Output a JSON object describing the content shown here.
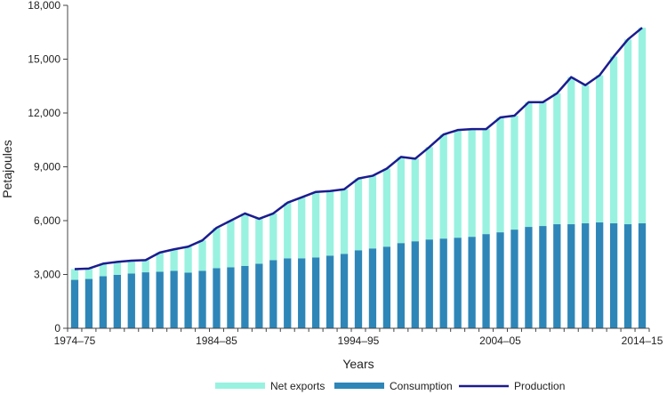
{
  "chart_data": {
    "type": "bar",
    "stacked": true,
    "xlabel": "Years",
    "ylabel": "Petajoules",
    "ylim": [
      0,
      18000
    ],
    "yticks": [
      0,
      3000,
      6000,
      9000,
      12000,
      15000,
      18000
    ],
    "ytick_labels": [
      "0",
      "3,000",
      "6,000",
      "9,000",
      "12,000",
      "15,000",
      "18,000"
    ],
    "xtick_labels": [
      "1974–75",
      "1984–85",
      "1994–95",
      "2004–05",
      "2014–15"
    ],
    "categories": [
      "1974–75",
      "1975–76",
      "1976–77",
      "1977–78",
      "1978–79",
      "1979–80",
      "1980–81",
      "1981–82",
      "1982–83",
      "1983–84",
      "1984–85",
      "1985–86",
      "1986–87",
      "1987–88",
      "1988–89",
      "1989–90",
      "1990–91",
      "1991–92",
      "1992–93",
      "1993–94",
      "1994–95",
      "1995–96",
      "1996–97",
      "1997–98",
      "1998–99",
      "1999–00",
      "2000–01",
      "2001–02",
      "2002–03",
      "2003–04",
      "2004–05",
      "2005–06",
      "2006–07",
      "2007–08",
      "2008–09",
      "2009–10",
      "2010–11",
      "2011–12",
      "2012–13",
      "2013–14",
      "2014–15"
    ],
    "series": [
      {
        "name": "Consumption",
        "type": "bar",
        "color": "#2e86b8",
        "values": [
          2700,
          2750,
          2900,
          2980,
          3050,
          3120,
          3150,
          3200,
          3100,
          3200,
          3350,
          3400,
          3480,
          3600,
          3800,
          3900,
          3900,
          3950,
          4050,
          4150,
          4350,
          4450,
          4550,
          4750,
          4850,
          4950,
          5000,
          5050,
          5100,
          5250,
          5350,
          5500,
          5650,
          5700,
          5800,
          5800,
          5850,
          5900,
          5850,
          5800,
          5850
        ]
      },
      {
        "name": "Net exports",
        "type": "bar",
        "color": "#99f2e0",
        "values": [
          600,
          580,
          700,
          720,
          720,
          680,
          1070,
          1200,
          1450,
          1700,
          2250,
          2600,
          2920,
          2500,
          2600,
          3100,
          3400,
          3650,
          3600,
          3600,
          4000,
          4050,
          4350,
          4800,
          4600,
          5150,
          5800,
          6000,
          6000,
          5850,
          6400,
          6350,
          6950,
          6900,
          7300,
          8200,
          7700,
          8200,
          9300,
          10300,
          10900
        ]
      },
      {
        "name": "Production",
        "type": "line",
        "color": "#1c1c8f",
        "values": [
          3300,
          3330,
          3600,
          3700,
          3770,
          3800,
          4220,
          4400,
          4550,
          4900,
          5600,
          6000,
          6400,
          6100,
          6400,
          7000,
          7300,
          7600,
          7650,
          7750,
          8350,
          8500,
          8900,
          9550,
          9450,
          10100,
          10800,
          11050,
          11100,
          11100,
          11750,
          11850,
          12600,
          12600,
          13100,
          14000,
          13550,
          14100,
          15150,
          16100,
          16750
        ]
      }
    ],
    "legend": {
      "placement": "bottom",
      "entries": [
        "Net exports",
        "Consumption",
        "Production"
      ]
    },
    "grid": false
  }
}
